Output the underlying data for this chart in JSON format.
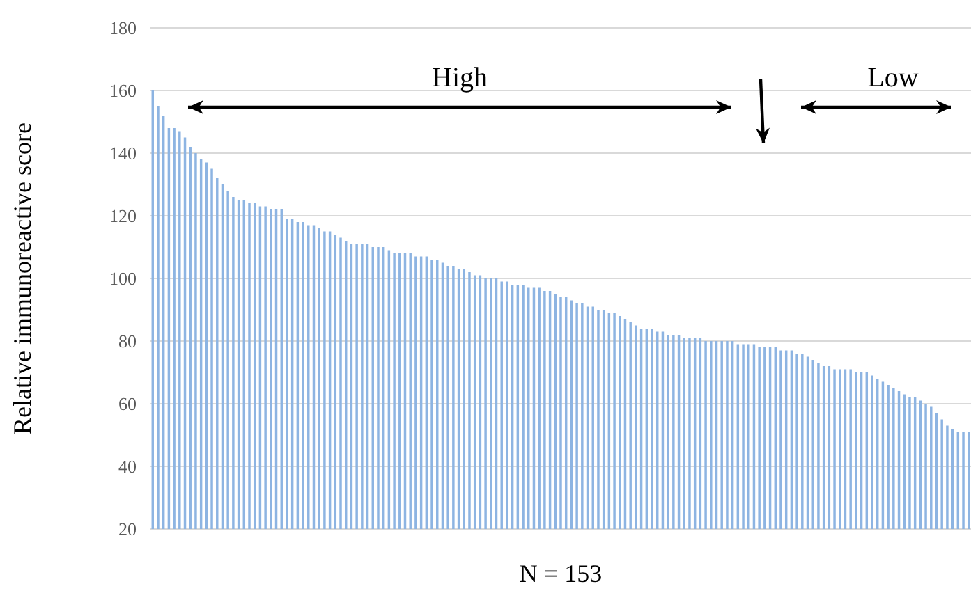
{
  "chart_data": {
    "type": "bar",
    "xlabel": "N = 153",
    "ylabel": "Relative immunoreactive score",
    "annotations": [
      "High",
      "Low"
    ],
    "categories": [
      null,
      null,
      null,
      null,
      null,
      null,
      null,
      null,
      null,
      null,
      null,
      null,
      null,
      null,
      null,
      null,
      null,
      null,
      null,
      null,
      null,
      null,
      null,
      null,
      null,
      null,
      null,
      null,
      null,
      null,
      null,
      null,
      null,
      null,
      null,
      null,
      null,
      null,
      null,
      null,
      null,
      null,
      null,
      null,
      null,
      null,
      null,
      null,
      null,
      null,
      null,
      null,
      null,
      null,
      null,
      null,
      null,
      null,
      null,
      null,
      null,
      null,
      null,
      null,
      null,
      null,
      null,
      null,
      null,
      null,
      null,
      null,
      null,
      null,
      null,
      null,
      null,
      null,
      null,
      null,
      null,
      null,
      null,
      null,
      null,
      null,
      null,
      null,
      null,
      null,
      null,
      null,
      null,
      null,
      null,
      null,
      null,
      null,
      null,
      null,
      null,
      null,
      null,
      null,
      null,
      null,
      null,
      null,
      null,
      null,
      null,
      null,
      null,
      null,
      null,
      null,
      null,
      null,
      null,
      null,
      null,
      null,
      null,
      null,
      null,
      null,
      null,
      null,
      null,
      null,
      null,
      null,
      null,
      null,
      null,
      null,
      null,
      null,
      null,
      null,
      null,
      null,
      null,
      null,
      null,
      null,
      null,
      null,
      null,
      null,
      null,
      null,
      null
    ],
    "values": [
      160,
      155,
      152,
      148,
      148,
      147,
      145,
      142,
      140,
      138,
      137,
      135,
      132,
      130,
      128,
      126,
      125,
      125,
      124,
      124,
      123,
      123,
      122,
      122,
      122,
      119,
      119,
      118,
      118,
      117,
      117,
      116,
      115,
      115,
      114,
      113,
      112,
      111,
      111,
      111,
      111,
      110,
      110,
      110,
      109,
      108,
      108,
      108,
      108,
      107,
      107,
      107,
      106,
      106,
      105,
      104,
      104,
      103,
      103,
      102,
      101,
      101,
      100,
      100,
      100,
      99,
      99,
      98,
      98,
      98,
      97,
      97,
      97,
      96,
      96,
      95,
      94,
      94,
      93,
      92,
      92,
      91,
      91,
      90,
      90,
      89,
      89,
      88,
      87,
      86,
      85,
      84,
      84,
      84,
      83,
      83,
      82,
      82,
      82,
      81,
      81,
      81,
      81,
      80,
      80,
      80,
      80,
      80,
      80,
      79,
      79,
      79,
      79,
      78,
      78,
      78,
      78,
      77,
      77,
      77,
      76,
      76,
      75,
      74,
      73,
      72,
      72,
      71,
      71,
      71,
      71,
      70,
      70,
      70,
      69,
      68,
      67,
      66,
      65,
      64,
      63,
      62,
      62,
      61,
      60,
      59,
      57,
      55,
      53,
      52,
      51,
      51,
      51
    ],
    "color": "#8db4e2",
    "ylim": [
      20,
      180
    ],
    "yticks": [
      20,
      40,
      60,
      80,
      100,
      120,
      140,
      160,
      180
    ],
    "grid": "y"
  }
}
